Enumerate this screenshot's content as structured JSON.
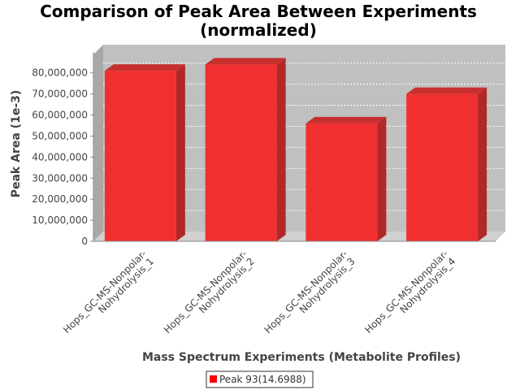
{
  "chart_data": {
    "type": "bar",
    "title_lines": [
      "Comparison of Peak Area Between Experiments",
      "(normalized)"
    ],
    "xlabel": "Mass Spectrum Experiments (Metabolite Profiles)",
    "ylabel": "Peak Area (1e-3)",
    "categories": [
      [
        "Hops_GC-MS-Nonpolar-",
        "Nohydrolysis_1"
      ],
      [
        "Hops_GC-MS-Nonpolar-",
        "Nohydrolysis_2"
      ],
      [
        "Hops_GC-MS-Nonpolar-",
        "Nohydrolysis_3"
      ],
      [
        "Hops_GC-MS-Nonpolar-",
        "Nohydrolysis_4"
      ]
    ],
    "series": [
      {
        "name": "Peak 93(14.6988)",
        "values": [
          81000000,
          84000000,
          56000000,
          70000000
        ]
      }
    ],
    "ylim": [
      0,
      88000000
    ],
    "yticks": [
      0,
      10000000,
      20000000,
      30000000,
      40000000,
      50000000,
      60000000,
      70000000,
      80000000
    ],
    "ytick_labels": [
      "0",
      "10,000,000",
      "20,000,000",
      "30,000,000",
      "40,000,000",
      "50,000,000",
      "60,000,000",
      "70,000,000",
      "80,000,000"
    ],
    "grid": true,
    "legend_position": "bottom-center",
    "colors": {
      "bar_front": "#f03030",
      "bar_side": "#b02828",
      "bar_top": "#c83030",
      "plot_back": "#c0c0c0",
      "plot_floor": "#d0d0d0",
      "grid": "#ffffff"
    }
  }
}
